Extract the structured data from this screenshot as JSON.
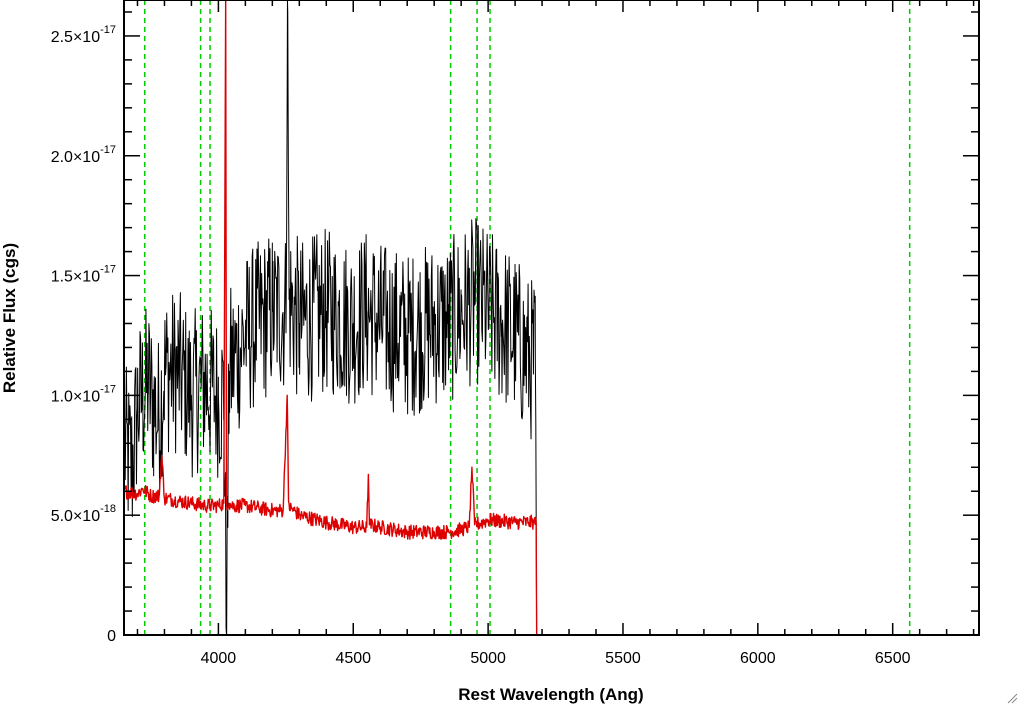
{
  "chart_data": {
    "type": "line",
    "title": "",
    "xlabel": "Rest Wavelength (Ang)",
    "ylabel": "Relative Flux (cgs)",
    "xlim": [
      3650,
      6820
    ],
    "ylim": [
      0,
      2.65e-17
    ],
    "x_ticks": [
      {
        "value": 4000,
        "label": "4000"
      },
      {
        "value": 4500,
        "label": "4500"
      },
      {
        "value": 5000,
        "label": "5000"
      },
      {
        "value": 5500,
        "label": "5500"
      },
      {
        "value": 6000,
        "label": "6000"
      },
      {
        "value": 6500,
        "label": "6500"
      }
    ],
    "y_ticks": [
      {
        "value": 0,
        "mantissa": "0",
        "exponent": ""
      },
      {
        "value": 5e-18,
        "mantissa": "5.0×10",
        "exponent": "-18"
      },
      {
        "value": 1e-17,
        "mantissa": "1.0×10",
        "exponent": "-17"
      },
      {
        "value": 1.5e-17,
        "mantissa": "1.5×10",
        "exponent": "-17"
      },
      {
        "value": 2e-17,
        "mantissa": "2.0×10",
        "exponent": "-17"
      },
      {
        "value": 2.5e-17,
        "mantissa": "2.5×10",
        "exponent": "-17"
      }
    ],
    "grid": false,
    "series": [
      {
        "color": "#000000",
        "style": "solid",
        "x": [
          3650,
          3680,
          3700,
          3720,
          3740,
          3760,
          3780,
          3800,
          3850,
          3900,
          3950,
          4000,
          4020,
          4030,
          4040,
          4100,
          4200,
          4250,
          4256,
          4262,
          4300,
          4400,
          4500,
          4550,
          4600,
          4700,
          4800,
          4850,
          4900,
          4950,
          5000,
          5050,
          5100,
          5150,
          5175,
          5180
        ],
        "y": [
          8e-18,
          7e-18,
          9.5e-18,
          1e-17,
          1.05e-17,
          9.5e-18,
          9e-18,
          1.1e-17,
          1.1e-17,
          1e-17,
          1.05e-17,
          1e-17,
          1e-17,
          0,
          1.1e-17,
          1.25e-17,
          1.35e-17,
          1.35e-17,
          2.65e-17,
          1.4e-17,
          1.3e-17,
          1.35e-17,
          1.3e-17,
          1.35e-17,
          1.3e-17,
          1.25e-17,
          1.3e-17,
          1.3e-17,
          1.35e-17,
          1.4e-17,
          1.35e-17,
          1.3e-17,
          1.25e-17,
          1.15e-17,
          1.15e-17,
          0
        ],
        "noise_amplitude": 3.5e-18
      },
      {
        "color": "#dd0000",
        "style": "solid",
        "x": [
          3650,
          3700,
          3720,
          3750,
          3780,
          3790,
          3800,
          3810,
          3850,
          3900,
          3950,
          4000,
          4020,
          4027,
          4030,
          4040,
          4050,
          4100,
          4150,
          4200,
          4240,
          4255,
          4260,
          4265,
          4280,
          4300,
          4400,
          4500,
          4550,
          4556,
          4560,
          4600,
          4700,
          4800,
          4850,
          4900,
          4930,
          4940,
          4950,
          4980,
          5000,
          5100,
          5150,
          5170,
          5178,
          5180,
          5200,
          6820
        ],
        "y": [
          6e-18,
          5.9e-18,
          6.1e-18,
          5.8e-18,
          5.8e-18,
          7.5e-18,
          5.7e-18,
          5.7e-18,
          5.6e-18,
          5.5e-18,
          5.4e-18,
          5.4e-18,
          5.5e-18,
          2.65e-17,
          5.5e-18,
          5.5e-18,
          5.4e-18,
          5.4e-18,
          5.3e-18,
          5.2e-18,
          5.2e-18,
          1e-17,
          5.6e-18,
          5.3e-18,
          5.2e-18,
          5e-18,
          4.7e-18,
          4.5e-18,
          4.5e-18,
          6.7e-18,
          4.6e-18,
          4.5e-18,
          4.3e-18,
          4.3e-18,
          4.3e-18,
          4.4e-18,
          4.5e-18,
          7e-18,
          4.6e-18,
          4.7e-18,
          4.8e-18,
          4.7e-18,
          4.7e-18,
          4.7e-18,
          4.7e-18,
          0,
          0,
          0
        ],
        "noise_amplitude": 3e-19
      }
    ],
    "vlines": {
      "color": "#00cc00",
      "style": "dashed",
      "x": [
        3727,
        3934,
        3969,
        4861,
        4959,
        5007,
        6563
      ]
    }
  }
}
